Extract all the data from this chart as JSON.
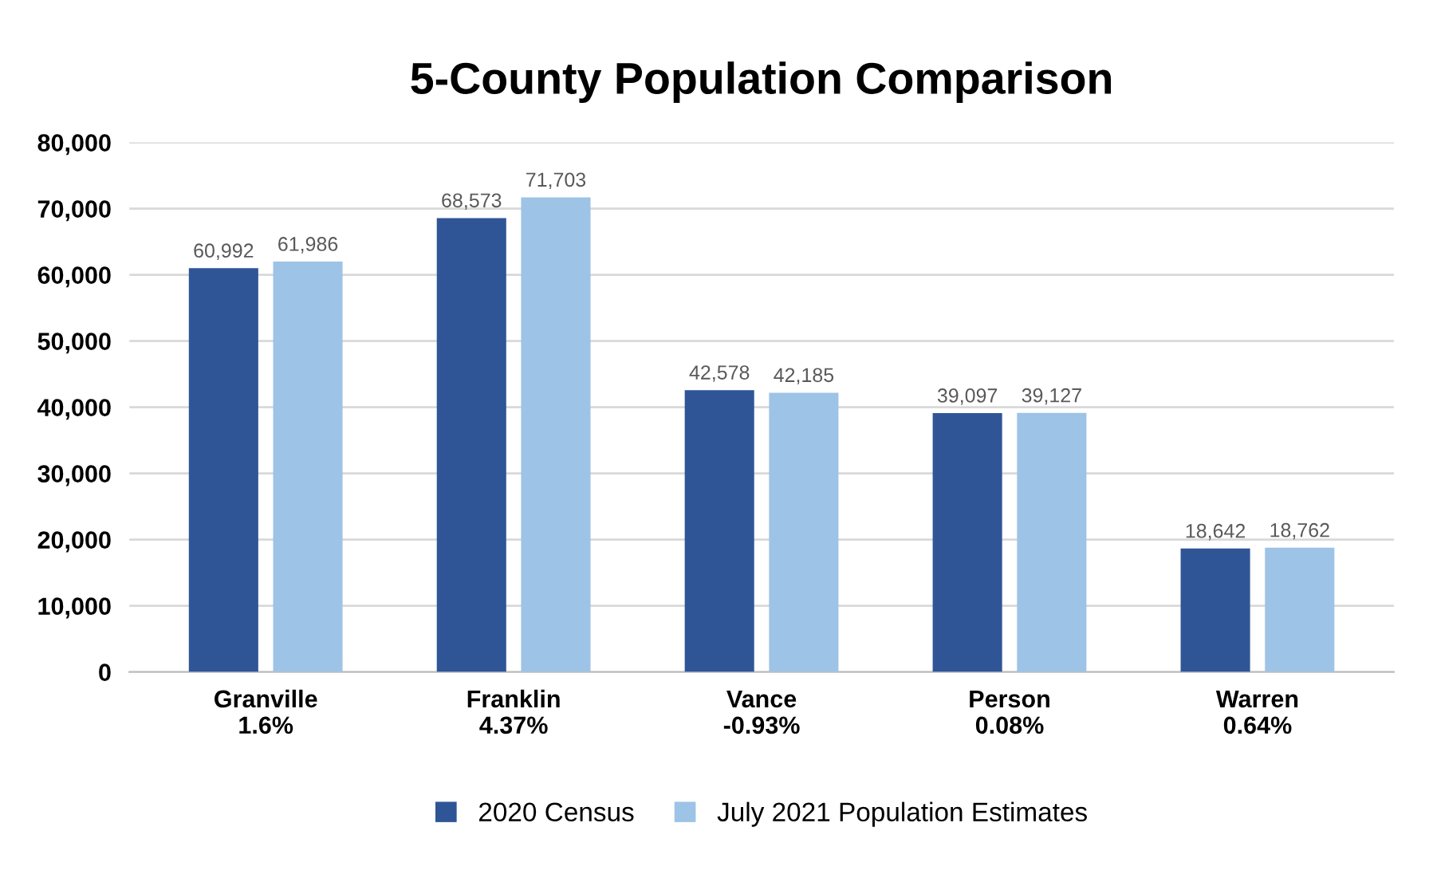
{
  "chart_data": {
    "type": "bar",
    "title": "5-County Population Comparison",
    "categories": [
      "Granville\n1.6%",
      "Franklin\n4.37%",
      "Vance\n-0.93%",
      "Person\n0.08%",
      "Warren\n0.64%"
    ],
    "series": [
      {
        "name": "2020 Census",
        "color": "#2f5597",
        "values": [
          60992,
          68573,
          42578,
          39097,
          18642
        ],
        "value_labels": [
          "60,992",
          "68,573",
          "42,578",
          "39,097",
          "18,642"
        ]
      },
      {
        "name": "July 2021 Population Estimates",
        "color": "#9dc3e6",
        "values": [
          61986,
          71703,
          42185,
          39127,
          18762
        ],
        "value_labels": [
          "61,986",
          "71,703",
          "42,185",
          "39,127",
          "18,762"
        ]
      }
    ],
    "ylim": [
      0,
      80000
    ],
    "yticks": [
      0,
      {
        "value": 10000,
        "label": "10,000"
      },
      {
        "value": 20000,
        "label": "20,000"
      },
      {
        "value": 30000,
        "label": "30,000"
      },
      {
        "value": 40000,
        "label": "40,000"
      },
      {
        "value": 50000,
        "label": "50,000"
      },
      {
        "value": 60000,
        "label": "60,000"
      },
      {
        "value": 70000,
        "label": "70,000"
      },
      {
        "value": 80000,
        "label": "80,000"
      }
    ],
    "grid": "y",
    "legend": "bottom"
  }
}
